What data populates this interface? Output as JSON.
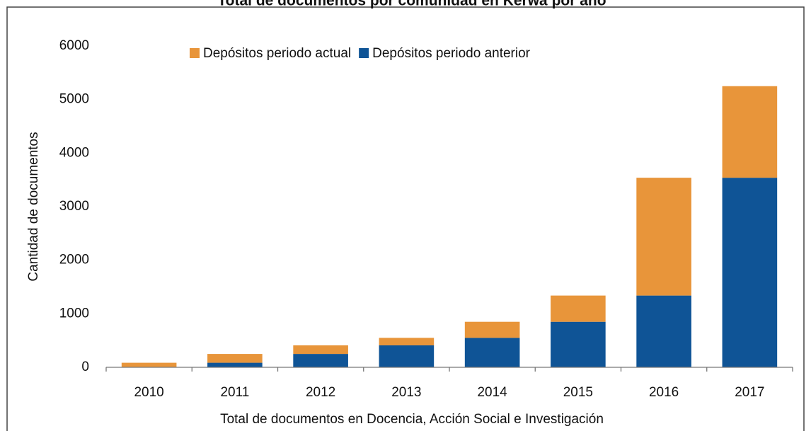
{
  "chart_data": {
    "type": "stacked_bar",
    "title": "Total de documentos por comunidad en Kerwá por año",
    "x_label": "Total de documentos en Docencia, Acción Social e Investigación",
    "y_label": "Cantidad de documentos",
    "categories": [
      "2010",
      "2011",
      "2012",
      "2013",
      "2014",
      "2015",
      "2016",
      "2017"
    ],
    "series": [
      {
        "name": "Depósitos periodo anterior",
        "color": "#0f5496",
        "values": [
          0,
          85,
          250,
          410,
          550,
          850,
          1340,
          3540
        ]
      },
      {
        "name": "Depósitos periodo actual",
        "color": "#e8953a",
        "values": [
          85,
          165,
          160,
          140,
          300,
          490,
          2200,
          1710
        ]
      }
    ],
    "ylim": [
      0,
      6000
    ],
    "yticks": [
      0,
      1000,
      2000,
      3000,
      4000,
      5000,
      6000
    ],
    "legend": "top"
  }
}
